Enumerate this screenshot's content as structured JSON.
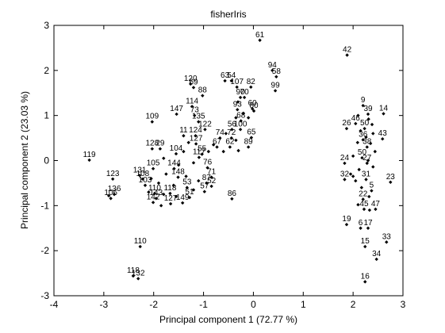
{
  "chart_data": {
    "type": "scatter",
    "title": "fisherIris",
    "xlabel": "Principal component 1 (72.77 %)",
    "ylabel": "Principal component 2 (23.03 %)",
    "xlim": [
      -4,
      3
    ],
    "ylim": [
      -3,
      3
    ],
    "xticks": [
      "-4",
      "-3",
      "-2",
      "-1",
      "0",
      "1",
      "2",
      "3"
    ],
    "yticks": [
      "-3",
      "-2",
      "-1",
      "0",
      "1",
      "2",
      "3"
    ],
    "grid": false,
    "marker_color": "#000000",
    "points": [
      {
        "label": "61",
        "x": 0.13,
        "y": 2.67
      },
      {
        "label": "42",
        "x": 1.88,
        "y": 2.34
      },
      {
        "label": "94",
        "x": 0.38,
        "y": 2.0
      },
      {
        "label": "58",
        "x": 0.46,
        "y": 1.86
      },
      {
        "label": "63",
        "x": -0.57,
        "y": 1.77
      },
      {
        "label": "54",
        "x": -0.44,
        "y": 1.77
      },
      {
        "label": "107",
        "x": -0.33,
        "y": 1.63
      },
      {
        "label": "82",
        "x": -0.05,
        "y": 1.63
      },
      {
        "label": "99",
        "x": 0.44,
        "y": 1.55
      },
      {
        "label": "120",
        "x": -1.26,
        "y": 1.7
      },
      {
        "label": "69",
        "x": -1.2,
        "y": 1.62
      },
      {
        "label": "88",
        "x": -1.02,
        "y": 1.44
      },
      {
        "label": "90",
        "x": -0.26,
        "y": 1.4
      },
      {
        "label": "70",
        "x": -0.18,
        "y": 1.4
      },
      {
        "label": "114",
        "x": -1.23,
        "y": 1.2
      },
      {
        "label": "9",
        "x": 2.2,
        "y": 1.22
      },
      {
        "label": "14",
        "x": 2.61,
        "y": 1.04
      },
      {
        "label": "39",
        "x": 2.3,
        "y": 1.03
      },
      {
        "label": "93",
        "x": -0.32,
        "y": 1.13
      },
      {
        "label": "60",
        "x": -0.02,
        "y": 1.15
      },
      {
        "label": "80",
        "x": 0.01,
        "y": 1.1
      },
      {
        "label": "147",
        "x": -1.54,
        "y": 1.03
      },
      {
        "label": "73",
        "x": -1.18,
        "y": 1.0
      },
      {
        "label": "109",
        "x": -2.03,
        "y": 0.86
      },
      {
        "label": "135",
        "x": -1.1,
        "y": 0.86
      },
      {
        "label": "68",
        "x": -0.25,
        "y": 0.88
      },
      {
        "label": "46",
        "x": 2.05,
        "y": 0.82
      },
      {
        "label": "26",
        "x": 1.87,
        "y": 0.71
      },
      {
        "label": "50",
        "x": 2.23,
        "y": 0.71
      },
      {
        "label": "122",
        "x": -0.97,
        "y": 0.69
      },
      {
        "label": "56",
        "x": -0.43,
        "y": 0.69
      },
      {
        "label": "100",
        "x": -0.26,
        "y": 0.69
      },
      {
        "label": "11",
        "x": -1.4,
        "y": 0.55
      },
      {
        "label": "124",
        "x": -1.16,
        "y": 0.55
      },
      {
        "label": "74",
        "x": -0.67,
        "y": 0.5
      },
      {
        "label": "72",
        "x": -0.44,
        "y": 0.5
      },
      {
        "label": "65",
        "x": -0.04,
        "y": 0.51
      },
      {
        "label": "43",
        "x": 2.59,
        "y": 0.48
      },
      {
        "label": "36",
        "x": 2.2,
        "y": 0.46
      },
      {
        "label": "127",
        "x": -1.15,
        "y": 0.37
      },
      {
        "label": "67",
        "x": -0.73,
        "y": 0.3
      },
      {
        "label": "62",
        "x": -0.47,
        "y": 0.3
      },
      {
        "label": "89",
        "x": -0.1,
        "y": 0.3
      },
      {
        "label": "38",
        "x": 2.28,
        "y": 0.3
      },
      {
        "label": "128",
        "x": -2.03,
        "y": 0.26
      },
      {
        "label": "29",
        "x": -1.87,
        "y": 0.26
      },
      {
        "label": "104",
        "x": -1.55,
        "y": 0.15
      },
      {
        "label": "55",
        "x": -1.03,
        "y": 0.14
      },
      {
        "label": "117",
        "x": -1.09,
        "y": 0.07
      },
      {
        "label": "24",
        "x": 1.83,
        "y": -0.06
      },
      {
        "label": "27",
        "x": 2.28,
        "y": -0.06
      },
      {
        "label": "50",
        "x": 2.18,
        "y": 0.06
      },
      {
        "label": "119",
        "x": -3.29,
        "y": 0.01
      },
      {
        "label": "105",
        "x": -2.01,
        "y": -0.18
      },
      {
        "label": "144",
        "x": -1.59,
        "y": -0.18
      },
      {
        "label": "76",
        "x": -0.92,
        "y": -0.16
      },
      {
        "label": "123",
        "x": -2.82,
        "y": -0.41
      },
      {
        "label": "131",
        "x": -2.28,
        "y": -0.33
      },
      {
        "label": "108",
        "x": -2.22,
        "y": -0.41
      },
      {
        "label": "148",
        "x": -1.51,
        "y": -0.37
      },
      {
        "label": "71",
        "x": -0.84,
        "y": -0.37
      },
      {
        "label": "32",
        "x": 1.83,
        "y": -0.42
      },
      {
        "label": "31",
        "x": 2.26,
        "y": -0.42
      },
      {
        "label": "23",
        "x": 2.75,
        "y": -0.48
      },
      {
        "label": "87",
        "x": -0.94,
        "y": -0.5
      },
      {
        "label": "53",
        "x": -1.33,
        "y": -0.6
      },
      {
        "label": "52",
        "x": -0.84,
        "y": -0.57
      },
      {
        "label": "103",
        "x": -2.17,
        "y": -0.55
      },
      {
        "label": "110",
        "x": -1.98,
        "y": -0.73
      },
      {
        "label": "118",
        "x": -1.67,
        "y": -0.73
      },
      {
        "label": "57",
        "x": -0.98,
        "y": -0.69
      },
      {
        "label": "5",
        "x": 2.37,
        "y": -0.67
      },
      {
        "label": "106",
        "x": -2.86,
        "y": -0.84
      },
      {
        "label": "136",
        "x": -2.79,
        "y": -0.75
      },
      {
        "label": "143",
        "x": -1.95,
        "y": -0.84
      },
      {
        "label": "51",
        "x": -1.28,
        "y": -0.82
      },
      {
        "label": "86",
        "x": -0.43,
        "y": -0.85
      },
      {
        "label": "22",
        "x": 2.2,
        "y": -0.86
      },
      {
        "label": "142",
        "x": -2.01,
        "y": -0.93
      },
      {
        "label": "127",
        "x": -1.66,
        "y": -0.96
      },
      {
        "label": "149",
        "x": -1.42,
        "y": -0.94
      },
      {
        "label": "45",
        "x": 2.22,
        "y": -1.08
      },
      {
        "label": "47",
        "x": 2.45,
        "y": -1.08
      },
      {
        "label": "19",
        "x": 1.87,
        "y": -1.42
      },
      {
        "label": "6",
        "x": 2.15,
        "y": -1.5
      },
      {
        "label": "17",
        "x": 2.3,
        "y": -1.5
      },
      {
        "label": "15",
        "x": 2.24,
        "y": -1.91
      },
      {
        "label": "33",
        "x": 2.67,
        "y": -1.81
      },
      {
        "label": "110",
        "x": -2.27,
        "y": -1.91
      },
      {
        "label": "34",
        "x": 2.47,
        "y": -2.19
      },
      {
        "label": "118",
        "x": -2.41,
        "y": -2.56
      },
      {
        "label": "132",
        "x": -2.31,
        "y": -2.62
      },
      {
        "label": "16",
        "x": 2.24,
        "y": -2.69
      }
    ],
    "unlabeled_points": [
      {
        "x": 2.1,
        "y": 1.0
      },
      {
        "x": 2.31,
        "y": 0.92
      },
      {
        "x": 2.38,
        "y": 0.8
      },
      {
        "x": 2.15,
        "y": 0.66
      },
      {
        "x": 2.4,
        "y": 0.6
      },
      {
        "x": 2.26,
        "y": 0.52
      },
      {
        "x": 2.09,
        "y": 0.4
      },
      {
        "x": 2.35,
        "y": 0.38
      },
      {
        "x": 2.44,
        "y": 0.2
      },
      {
        "x": 2.0,
        "y": 0.1
      },
      {
        "x": 2.3,
        "y": 0.0
      },
      {
        "x": 2.12,
        "y": -0.2
      },
      {
        "x": 2.4,
        "y": -0.14
      },
      {
        "x": 1.95,
        "y": -0.3
      },
      {
        "x": 2.05,
        "y": -0.45
      },
      {
        "x": 2.17,
        "y": -0.6
      },
      {
        "x": 2.32,
        "y": -0.8
      },
      {
        "x": 2.1,
        "y": -0.98
      },
      {
        "x": 2.33,
        "y": -1.1
      },
      {
        "x": 2.0,
        "y": -0.35
      },
      {
        "x": -0.31,
        "y": 1.3
      },
      {
        "x": -0.2,
        "y": 1.05
      },
      {
        "x": -0.35,
        "y": 0.95
      },
      {
        "x": -0.1,
        "y": 0.95
      },
      {
        "x": -0.55,
        "y": 0.6
      },
      {
        "x": -0.35,
        "y": 0.45
      },
      {
        "x": -0.8,
        "y": 0.35
      },
      {
        "x": -0.6,
        "y": 0.2
      },
      {
        "x": -0.3,
        "y": 0.22
      },
      {
        "x": -0.9,
        "y": 0.2
      },
      {
        "x": -1.3,
        "y": 0.4
      },
      {
        "x": -1.4,
        "y": 0.2
      },
      {
        "x": -1.2,
        "y": -0.05
      },
      {
        "x": -1.5,
        "y": -0.1
      },
      {
        "x": -1.8,
        "y": 0.05
      },
      {
        "x": -1.75,
        "y": -0.3
      },
      {
        "x": -1.35,
        "y": -0.35
      },
      {
        "x": -1.1,
        "y": -0.45
      },
      {
        "x": -1.6,
        "y": -0.55
      },
      {
        "x": -1.9,
        "y": -0.5
      },
      {
        "x": -2.05,
        "y": -0.4
      },
      {
        "x": -1.8,
        "y": -0.75
      },
      {
        "x": -1.55,
        "y": -0.8
      },
      {
        "x": -1.2,
        "y": -0.65
      },
      {
        "x": -2.1,
        "y": -0.7
      },
      {
        "x": -1.85,
        "y": -1.0
      },
      {
        "x": -2.9,
        "y": -0.78
      }
    ]
  }
}
